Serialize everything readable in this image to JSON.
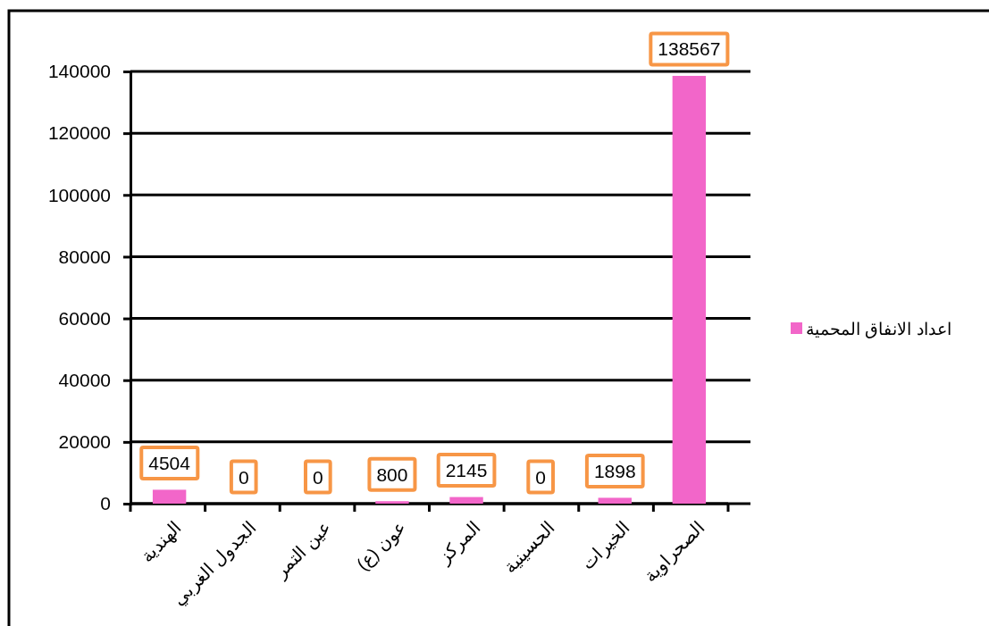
{
  "chart_data": {
    "type": "bar",
    "categories": [
      "الهندية",
      "الجدول الغربي",
      "عين التمر",
      "عون (ع)",
      "المركز",
      "الحسينية",
      "الخيرات",
      "الصحراوية"
    ],
    "series": [
      {
        "name": "اعداد الانفاق المحمية",
        "color": "#f266c9",
        "values": [
          4504,
          0,
          0,
          800,
          2145,
          0,
          1898,
          138567
        ]
      }
    ],
    "ylim": [
      0,
      140000
    ],
    "yticks": [
      0,
      20000,
      40000,
      60000,
      80000,
      100000,
      120000,
      140000
    ],
    "grid": "y",
    "legend": "right",
    "data_labels": true
  }
}
